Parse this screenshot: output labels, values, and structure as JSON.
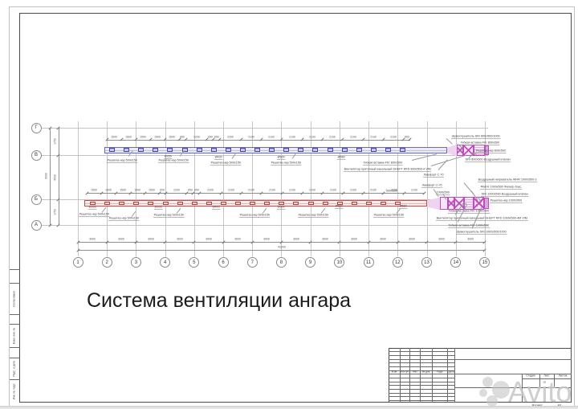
{
  "page": {
    "title_caption": "Система вентиляции ангара",
    "watermark": "Avito",
    "format_label": "Формат",
    "format_value": "А3"
  },
  "frame": {
    "side_labels": [
      "Согласовано",
      "Взам. инв. №",
      "Подп. и дата",
      "Инв. № подл."
    ]
  },
  "grid": {
    "column_axes": [
      "1",
      "2",
      "3",
      "4",
      "5",
      "6",
      "7",
      "8",
      "9",
      "10",
      "11",
      "12",
      "13",
      "14",
      "15"
    ],
    "row_axes": [
      "Г",
      "В",
      "Б",
      "А"
    ],
    "column_spacing": "3000",
    "column_total": "42000",
    "row_spacings": [
      "1750",
      "4500",
      "1750"
    ],
    "row_total": "9000"
  },
  "systems": {
    "blue": {
      "dims": [
        "1500",
        "1500",
        "1500",
        "1500",
        "1500",
        "650",
        "2200",
        "650",
        "650",
        "2200",
        "2100",
        "2100",
        "2100",
        "2100",
        "2100",
        "2100",
        "2100",
        "2100",
        "650"
      ],
      "grille_label": "Решетка нар 500х150",
      "diameters": [
        "Ø355",
        "Ø400",
        "Ø500",
        "Ø560"
      ],
      "right_labels": [
        "Шумоглушитель SRr 800х500/1000",
        "Гибкая вставка FKr 800х500",
        "Решетка нар 800х500",
        "DRr 800х500 Воздушный клапан"
      ],
      "equipment_labels": [
        "Гибкая вставка FKr 800х500",
        "Вентилятор приточный канальный SHUFT RFD 800х500-4 VIM",
        "Ламфорт С-70"
      ]
    },
    "red": {
      "dims": [
        "1500",
        "1500",
        "1500",
        "1500",
        "1500",
        "650",
        "2200",
        "650",
        "650",
        "2200",
        "2100",
        "2100",
        "2100",
        "2100",
        "2100",
        "2100",
        "2100",
        "2100",
        "2100",
        "2100"
      ],
      "grille_label": "Решетка нар 500х150",
      "diameters": [
        "Ø355",
        "Ø355",
        "Ø400",
        "Ø500",
        "Ø560",
        "Ø560"
      ],
      "size_labels": [
        "500х500",
        "1000х500"
      ],
      "top_labels": [
        "Ламфорт С-70",
        "Воздушный нагреватель WHR 1000х500-3",
        "ФБК-К 1000х500 Фильтр-бокс",
        "DRr 1000х500 Воздушный клапан",
        "Решетка нар 1000х500"
      ],
      "bottom_labels": [
        "Гибкая вставка FKr 1000х500",
        "Вентилятор приточный канальный SHUFT RFD 1000х500-4М VIM",
        "Гибкая вставка FKr 1000х500",
        "Шумоглушитель SRr 1000х500/1000"
      ]
    }
  },
  "titleblock": {
    "revision_headers": [
      "Изм",
      "Кол.уч",
      "Лист",
      "№ док.",
      "Подп.",
      "Дата"
    ],
    "stage_headers": [
      "Стадия",
      "Лист",
      "Листов"
    ]
  }
}
